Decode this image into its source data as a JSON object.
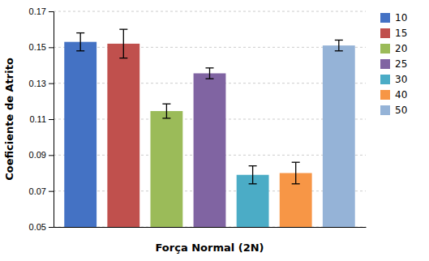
{
  "chart_data": {
    "type": "bar",
    "categories": [
      "10",
      "15",
      "20",
      "25",
      "30",
      "40",
      "50"
    ],
    "values": [
      0.153,
      0.152,
      0.1145,
      0.1355,
      0.079,
      0.08,
      0.151
    ],
    "errors": [
      0.005,
      0.008,
      0.004,
      0.003,
      0.005,
      0.006,
      0.003
    ],
    "colors": [
      "#4472C4",
      "#C0504D",
      "#9BBB59",
      "#8064A2",
      "#4BACC6",
      "#F79646",
      "#95B3D7"
    ],
    "xlabel": "Força Normal (2N)",
    "ylabel": "Coeficiente de Atrito",
    "ylim": [
      0.05,
      0.17
    ],
    "yticks": [
      0.05,
      0.07,
      0.09,
      0.11,
      0.13,
      0.15,
      0.17
    ],
    "grid": true,
    "legend": "right",
    "tick_labels": "y"
  }
}
